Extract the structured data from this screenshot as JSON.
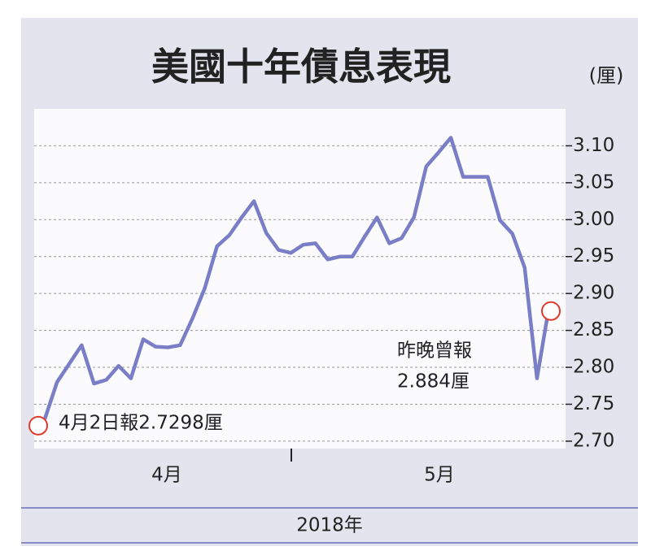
{
  "chart_data": {
    "type": "line",
    "title": "美國十年債息表現",
    "unit_label": "(厘)",
    "x_labels": [
      "4月",
      "5月"
    ],
    "x_axis_title": "2018年",
    "annotations": [
      "4月2日報2.7298厘",
      "昨晚曾報",
      "2.884厘"
    ],
    "series": [
      {
        "color": "#7a7ec6",
        "values": [
          2.7298,
          2.78,
          2.805,
          2.83,
          2.778,
          2.783,
          2.802,
          2.785,
          2.838,
          2.828,
          2.827,
          2.83,
          2.866,
          2.907,
          2.964,
          2.979,
          3.003,
          3.025,
          2.982,
          2.959,
          2.955,
          2.966,
          2.968,
          2.946,
          2.95,
          2.95,
          2.977,
          3.003,
          2.968,
          2.975,
          3.003,
          3.072,
          3.091,
          3.111,
          3.058,
          3.058,
          3.058,
          2.999,
          2.981,
          2.935,
          2.785,
          2.884
        ]
      }
    ],
    "marker_color": "#e03a2a",
    "ylim": [
      2.69,
      3.15
    ],
    "yticks": [
      {
        "value": 2.7,
        "label": "2.70"
      },
      2.75,
      {
        "value": 2.8,
        "label": "2.80"
      },
      2.85,
      {
        "value": 2.9,
        "label": "2.90"
      },
      2.95,
      {
        "value": 3.0,
        "label": "3.00"
      },
      3.05,
      {
        "value": 3.1,
        "label": "3.10"
      }
    ],
    "grid": true
  }
}
